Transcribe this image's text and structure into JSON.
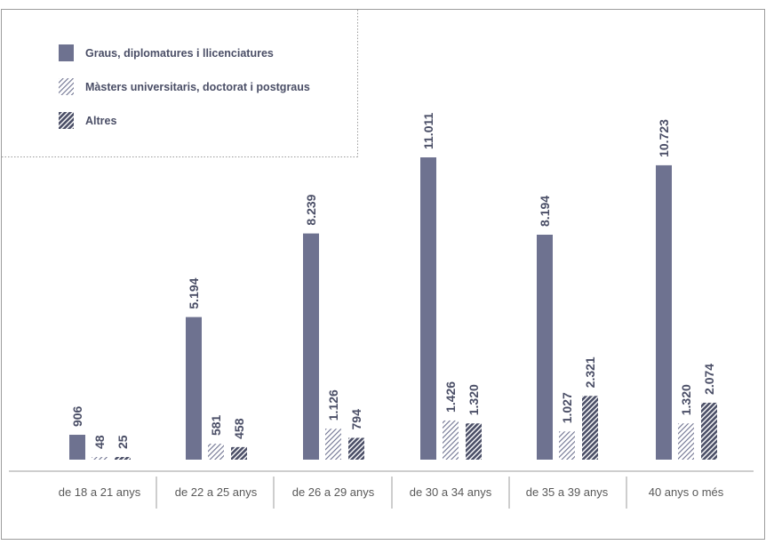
{
  "chart_data": {
    "type": "bar",
    "categories": [
      "de 18 a 21 anys",
      "de 22 a 25 anys",
      "de 26 a 29 anys",
      "de 30 a 34 anys",
      "de 35 a 39 anys",
      "40 anys o més"
    ],
    "series": [
      {
        "name": "Graus, diplomatures i llicenciatures",
        "values": [
          906,
          5194,
          8239,
          11011,
          8194,
          10723
        ],
        "labels": [
          "906",
          "5.194",
          "8.239",
          "11.011",
          "8.194",
          "10.723"
        ],
        "fill": "solid"
      },
      {
        "name": "Màsters universitaris, doctorat i postgraus",
        "values": [
          48,
          581,
          1126,
          1426,
          1027,
          1320
        ],
        "labels": [
          "48",
          "581",
          "1.126",
          "1.426",
          "1.027",
          "1.320"
        ],
        "fill": "hatch-light"
      },
      {
        "name": "Altres",
        "values": [
          25,
          458,
          794,
          1320,
          2321,
          2074
        ],
        "labels": [
          "25",
          "458",
          "794",
          "1.320",
          "2.321",
          "2.074"
        ],
        "fill": "hatch-dark"
      }
    ],
    "title": "",
    "xlabel": "",
    "ylabel": "",
    "ylim": [
      0,
      11011
    ],
    "grid": false,
    "legend_position": "top-left",
    "value_labels": "vertical above bars"
  },
  "colors": {
    "bar": "#6e7290",
    "hatch": "#4a4e66",
    "frame": "#9c9c9c",
    "text": "#4a4e66",
    "category_text": "#595959"
  }
}
